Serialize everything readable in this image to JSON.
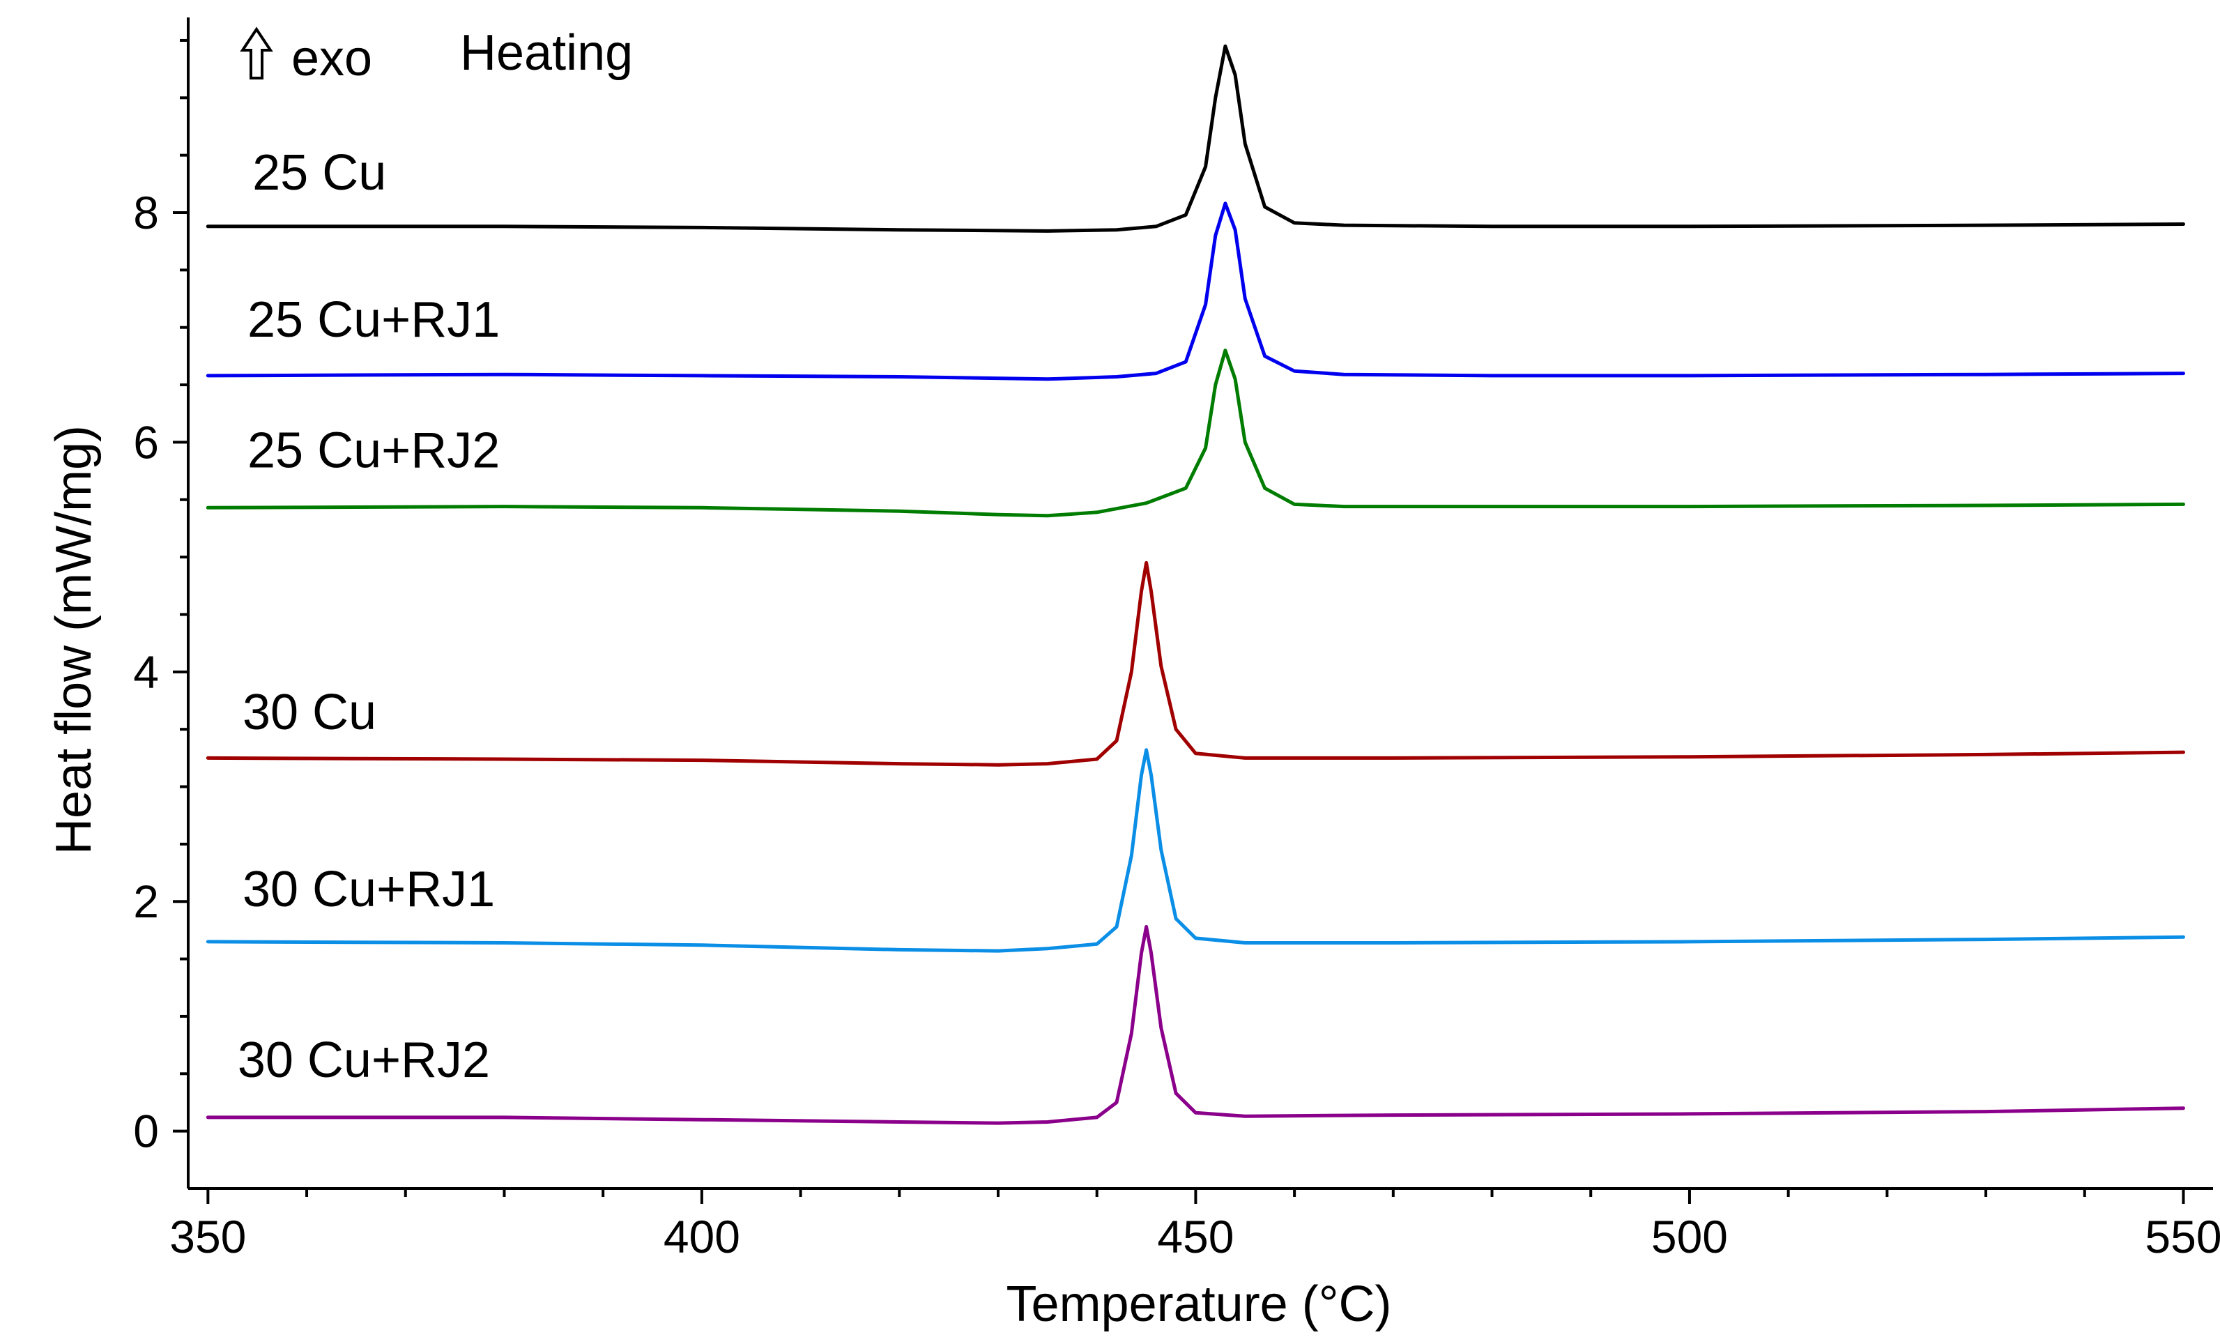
{
  "chart_data": {
    "type": "line",
    "title": "",
    "xlabel": "Temperature (°C)",
    "ylabel": "Heat flow (mW/mg)",
    "xlim": [
      348,
      553
    ],
    "ylim": [
      -0.5,
      9.7
    ],
    "x_ticks": [
      350,
      400,
      450,
      500,
      550
    ],
    "x_tick_labels": [
      "350",
      "400",
      "450",
      "500",
      "550"
    ],
    "y_ticks": [
      0,
      2,
      4,
      6,
      8
    ],
    "y_tick_labels": [
      "0",
      "2",
      "4",
      "6",
      "8"
    ],
    "annotations": {
      "exo_arrow_icon": "up-outline-arrow",
      "exo_label": "exo",
      "mode_label": "Heating"
    },
    "series": [
      {
        "name": "25 Cu",
        "color": "#000000",
        "label_x": 354.5,
        "label_y": 8.2,
        "x": [
          350,
          380,
          400,
          420,
          435,
          442,
          446,
          449,
          451,
          452,
          453,
          454,
          455,
          457,
          460,
          465,
          480,
          500,
          530,
          550
        ],
        "y": [
          7.88,
          7.88,
          7.87,
          7.85,
          7.84,
          7.85,
          7.88,
          7.98,
          8.4,
          9.0,
          9.45,
          9.2,
          8.6,
          8.05,
          7.91,
          7.89,
          7.88,
          7.88,
          7.89,
          7.9
        ]
      },
      {
        "name": "25 Cu+RJ1",
        "color": "#0000ee",
        "label_x": 354,
        "label_y": 6.92,
        "x": [
          350,
          380,
          400,
          420,
          435,
          442,
          446,
          449,
          451,
          452,
          453,
          454,
          455,
          457,
          460,
          465,
          480,
          500,
          530,
          550
        ],
        "y": [
          6.58,
          6.59,
          6.58,
          6.57,
          6.55,
          6.57,
          6.6,
          6.7,
          7.2,
          7.8,
          8.08,
          7.85,
          7.25,
          6.75,
          6.62,
          6.59,
          6.58,
          6.58,
          6.59,
          6.6
        ]
      },
      {
        "name": "25 Cu+RJ2",
        "color": "#007d00",
        "label_x": 354,
        "label_y": 5.78,
        "x": [
          350,
          380,
          400,
          420,
          430,
          435,
          440,
          445,
          449,
          451,
          452,
          453,
          454,
          455,
          457,
          460,
          465,
          480,
          500,
          530,
          550
        ],
        "y": [
          5.43,
          5.44,
          5.43,
          5.4,
          5.37,
          5.36,
          5.39,
          5.47,
          5.6,
          5.95,
          6.5,
          6.8,
          6.55,
          6.0,
          5.6,
          5.46,
          5.44,
          5.44,
          5.44,
          5.45,
          5.46
        ]
      },
      {
        "name": "30 Cu",
        "color": "#a00000",
        "label_x": 353.5,
        "label_y": 3.5,
        "x": [
          350,
          380,
          400,
          420,
          430,
          435,
          440,
          442,
          443.5,
          444.5,
          445,
          445.5,
          446.5,
          448,
          450,
          455,
          470,
          500,
          530,
          550
        ],
        "y": [
          3.25,
          3.24,
          3.23,
          3.2,
          3.19,
          3.2,
          3.24,
          3.4,
          4.0,
          4.7,
          4.95,
          4.7,
          4.05,
          3.5,
          3.29,
          3.25,
          3.25,
          3.26,
          3.28,
          3.3
        ]
      },
      {
        "name": "30 Cu+RJ1",
        "color": "#0a8ee6",
        "label_x": 353.5,
        "label_y": 1.96,
        "x": [
          350,
          380,
          400,
          420,
          430,
          435,
          440,
          442,
          443.5,
          444.5,
          445,
          445.5,
          446.5,
          448,
          450,
          455,
          470,
          500,
          530,
          550
        ],
        "y": [
          1.65,
          1.64,
          1.62,
          1.58,
          1.57,
          1.59,
          1.63,
          1.78,
          2.4,
          3.1,
          3.32,
          3.1,
          2.45,
          1.85,
          1.68,
          1.64,
          1.64,
          1.65,
          1.67,
          1.69
        ]
      },
      {
        "name": "30 Cu+RJ2",
        "color": "#8b008b",
        "label_x": 353,
        "label_y": 0.47,
        "x": [
          350,
          380,
          400,
          420,
          430,
          435,
          440,
          442,
          443.5,
          444.5,
          445,
          445.5,
          446.5,
          448,
          450,
          455,
          470,
          500,
          530,
          550
        ],
        "y": [
          0.12,
          0.12,
          0.1,
          0.08,
          0.07,
          0.08,
          0.12,
          0.25,
          0.85,
          1.55,
          1.78,
          1.55,
          0.9,
          0.33,
          0.16,
          0.13,
          0.14,
          0.15,
          0.17,
          0.2
        ]
      }
    ]
  }
}
